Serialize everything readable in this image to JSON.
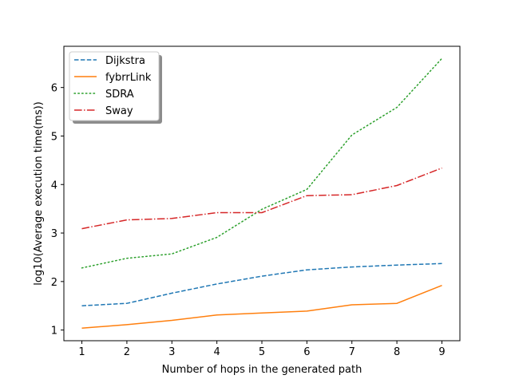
{
  "chart_data": {
    "type": "line",
    "title": "",
    "xlabel": "Number of hops in the generated path",
    "ylabel": "log10(Average execution time(ms))",
    "x": [
      1,
      2,
      3,
      4,
      5,
      6,
      7,
      8,
      9
    ],
    "xlim": [
      0.6,
      9.4
    ],
    "ylim": [
      0.78,
      6.85
    ],
    "xticks": [
      1,
      2,
      3,
      4,
      5,
      6,
      7,
      8,
      9
    ],
    "yticks": [
      1,
      2,
      3,
      4,
      5,
      6
    ],
    "grid": false,
    "legend_position": "top-left",
    "series": [
      {
        "name": "Dijkstra",
        "color": "#1f77b4",
        "style": "dashed",
        "values": [
          1.5,
          1.55,
          1.76,
          1.95,
          2.11,
          2.24,
          2.3,
          2.34,
          2.37
        ]
      },
      {
        "name": "fybrrLink",
        "color": "#ff7f0e",
        "style": "solid",
        "values": [
          1.04,
          1.11,
          1.2,
          1.31,
          1.35,
          1.39,
          1.52,
          1.55,
          1.92
        ]
      },
      {
        "name": "SDRA",
        "color": "#2ca02c",
        "style": "dotted",
        "values": [
          2.28,
          2.48,
          2.57,
          2.91,
          3.49,
          3.9,
          5.02,
          5.59,
          6.6
        ]
      },
      {
        "name": "Sway",
        "color": "#d62728",
        "style": "dashdot",
        "values": [
          3.09,
          3.27,
          3.3,
          3.42,
          3.42,
          3.77,
          3.79,
          3.98,
          4.34
        ]
      }
    ]
  }
}
